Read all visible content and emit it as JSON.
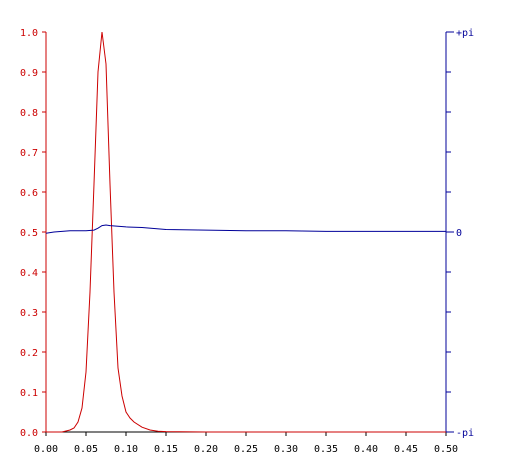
{
  "chart_data": {
    "type": "line",
    "x_axis": {
      "range": [
        0,
        0.5
      ],
      "ticks": [
        0,
        0.05,
        0.1,
        0.15,
        0.2,
        0.25,
        0.3,
        0.35,
        0.4,
        0.45,
        0.5
      ],
      "tick_labels": [
        "0.00",
        "0.05",
        "0.10",
        "0.15",
        "0.20",
        "0.25",
        "0.30",
        "0.35",
        "0.40",
        "0.45",
        "0.50"
      ],
      "color": "#000000"
    },
    "y_left": {
      "range": [
        0,
        1
      ],
      "ticks": [
        0,
        0.1,
        0.2,
        0.3,
        0.4,
        0.5,
        0.6,
        0.7,
        0.8,
        0.9,
        1.0
      ],
      "tick_labels": [
        "0.0",
        "0.1",
        "0.2",
        "0.3",
        "0.4",
        "0.5",
        "0.6",
        "0.7",
        "0.8",
        "0.9",
        "1.0"
      ],
      "color": "#cc0000"
    },
    "y_right": {
      "range": [
        -3.14159,
        3.14159
      ],
      "labeled_ticks": [
        {
          "value": 3.14159,
          "label": "+pi"
        },
        {
          "value": 0,
          "label": "0"
        },
        {
          "value": -3.14159,
          "label": "-pi"
        }
      ],
      "minor_ticks": [
        -2.51327,
        -1.88496,
        -1.25664,
        -0.62832,
        0.62832,
        1.25664,
        1.88496,
        2.51327
      ],
      "color": "#000099"
    },
    "grid": false,
    "series": [
      {
        "axis": "left",
        "color": "#cc0000",
        "x": [
          0,
          0.01,
          0.02,
          0.03,
          0.035,
          0.04,
          0.045,
          0.05,
          0.055,
          0.06,
          0.065,
          0.07,
          0.075,
          0.08,
          0.085,
          0.09,
          0.095,
          0.1,
          0.105,
          0.11,
          0.12,
          0.13,
          0.14,
          0.15,
          0.2,
          0.3,
          0.4,
          0.5
        ],
        "y": [
          0,
          0,
          0,
          0.005,
          0.01,
          0.025,
          0.06,
          0.15,
          0.35,
          0.62,
          0.9,
          1.0,
          0.92,
          0.62,
          0.35,
          0.16,
          0.09,
          0.05,
          0.035,
          0.025,
          0.012,
          0.005,
          0.002,
          0.001,
          0,
          0,
          0,
          0
        ]
      },
      {
        "axis": "right",
        "color": "#000099",
        "x": [
          0,
          0.01,
          0.02,
          0.03,
          0.04,
          0.05,
          0.06,
          0.065,
          0.07,
          0.075,
          0.08,
          0.09,
          0.1,
          0.12,
          0.15,
          0.2,
          0.25,
          0.3,
          0.35,
          0.4,
          0.45,
          0.5
        ],
        "y": [
          -0.02,
          0,
          0.01,
          0.02,
          0.02,
          0.02,
          0.03,
          0.06,
          0.1,
          0.11,
          0.1,
          0.09,
          0.08,
          0.07,
          0.04,
          0.03,
          0.02,
          0.02,
          0.01,
          0.01,
          0.01,
          0.01
        ]
      }
    ]
  }
}
